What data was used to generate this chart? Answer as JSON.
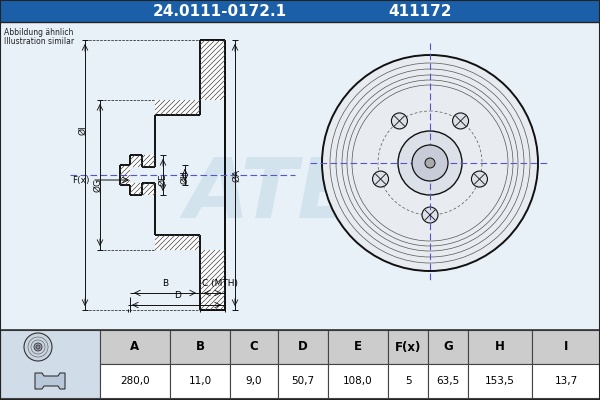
{
  "title_part": "24.0111-0172.1",
  "title_code": "411172",
  "subtitle1": "Abbildung ähnlich",
  "subtitle2": "Illustration similar",
  "bg_color": "#cce0f0",
  "diagram_bg": "#ddeeff",
  "title_bg": "#1a5fa8",
  "title_fg": "#ffffff",
  "table_headers": [
    "A",
    "B",
    "C",
    "D",
    "E",
    "F(x)",
    "G",
    "H",
    "I"
  ],
  "table_values": [
    "280,0",
    "11,0",
    "9,0",
    "50,7",
    "108,0",
    "5",
    "63,5",
    "153,5",
    "13,7"
  ],
  "line_color": "#111111",
  "centerline_color": "#5555cc",
  "header_bg": "#dddddd",
  "row_bg": "#ffffff",
  "hatch_color": "#444444",
  "watermark_color": "#aaccdd"
}
